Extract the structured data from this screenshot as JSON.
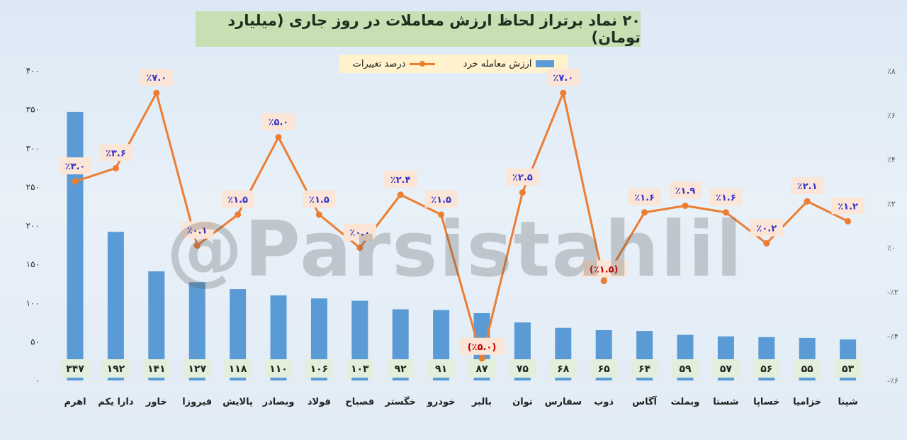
{
  "title": "۲۰ نماد برتراز لحاظ ارزش معاملات در روز جاری (میلیارد تومان)",
  "legend": {
    "bar_label": "ارزش معامله خرد",
    "line_label": "درصد تغییرات"
  },
  "watermark": "@Parsistahlil",
  "colors": {
    "bar": "#5b9bd5",
    "line": "#ed7d31",
    "value_box": "#e2efda",
    "pct_box": "#fbe5d6",
    "pct_text_positive": "#3333cc",
    "pct_text_negative": "#c00000"
  },
  "chart_data": {
    "type": "bar+line",
    "categories": [
      "اهرم",
      "دارا یکم",
      "خاور",
      "فیروزا",
      "پالایش",
      "وبصادر",
      "فولاد",
      "فصباح",
      "خگستر",
      "خودرو",
      "بالبر",
      "توان",
      "سفارس",
      "ذوب",
      "آگاس",
      "وبملت",
      "شستا",
      "خساپا",
      "خزامیا",
      "شپنا"
    ],
    "series": [
      {
        "name": "ارزش معامله خرد",
        "type": "bar",
        "axis": "left",
        "values": [
          347,
          192,
          141,
          127,
          118,
          110,
          106,
          103,
          92,
          91,
          87,
          75,
          68,
          65,
          64,
          59,
          57,
          56,
          55,
          53
        ],
        "labels": [
          "۳۴۷",
          "۱۹۲",
          "۱۴۱",
          "۱۲۷",
          "۱۱۸",
          "۱۱۰",
          "۱۰۶",
          "۱۰۳",
          "۹۲",
          "۹۱",
          "۸۷",
          "۷۵",
          "۶۸",
          "۶۵",
          "۶۴",
          "۵۹",
          "۵۷",
          "۵۶",
          "۵۵",
          "۵۳"
        ]
      },
      {
        "name": "درصد تغییرات",
        "type": "line",
        "axis": "right",
        "values": [
          3.0,
          3.6,
          7.0,
          0.1,
          1.5,
          5.0,
          1.5,
          0.0,
          2.4,
          1.5,
          -5.0,
          2.5,
          7.0,
          -1.5,
          1.6,
          1.9,
          1.6,
          0.2,
          2.1,
          1.2
        ],
        "labels": [
          "٪۳.۰",
          "٪۳.۶",
          "٪۷.۰",
          "٪۰.۱",
          "٪۱.۵",
          "٪۵.۰",
          "٪۱.۵",
          "٪۰.۰",
          "٪۲.۴",
          "٪۱.۵",
          "(٪۵.۰)",
          "٪۲.۵",
          "٪۷.۰",
          "(٪۱.۵)",
          "٪۱.۶",
          "٪۱.۹",
          "٪۱.۶",
          "٪۰.۲",
          "٪۲.۱",
          "٪۱.۲"
        ]
      }
    ],
    "y_left": {
      "range": [
        0,
        400
      ],
      "ticks": [
        0,
        50,
        100,
        150,
        200,
        250,
        300,
        350,
        400
      ],
      "tick_labels": [
        "۰",
        "۵۰",
        "۱۰۰",
        "۱۵۰",
        "۲۰۰",
        "۲۵۰",
        "۳۰۰",
        "۳۵۰",
        "۴۰۰"
      ]
    },
    "y_right": {
      "range": [
        -6,
        8
      ],
      "ticks": [
        -6,
        -4,
        -2,
        0,
        2,
        4,
        6,
        8
      ],
      "tick_labels": [
        "-٪۶",
        "-٪۴",
        "-٪۲",
        "٪۰",
        "٪۲",
        "٪۴",
        "٪۶",
        "٪۸"
      ]
    },
    "grid": false,
    "legend_position": "top-center"
  }
}
